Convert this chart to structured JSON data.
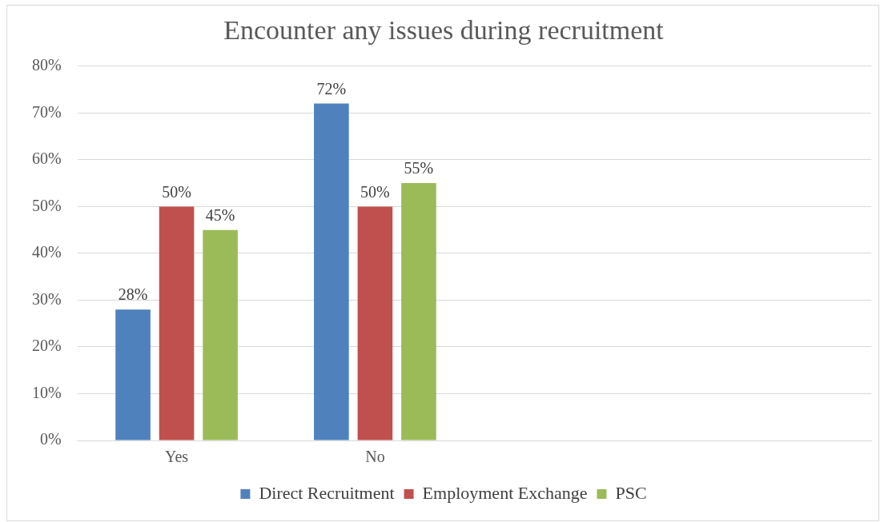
{
  "chart_data": {
    "type": "bar",
    "title": "Encounter any issues during recruitment",
    "categories": [
      "Yes",
      "No",
      null,
      null
    ],
    "series": [
      {
        "name": "Direct Recruitment",
        "color": "#4f81bd",
        "values": [
          28,
          72,
          null,
          null
        ],
        "value_labels": [
          "28%",
          "72%",
          null,
          null
        ]
      },
      {
        "name": "Employment Exchange",
        "color": "#c0504d",
        "values": [
          50,
          50,
          null,
          null
        ],
        "value_labels": [
          "50%",
          "50%",
          null,
          null
        ]
      },
      {
        "name": "PSC",
        "color": "#9bbb59",
        "values": [
          45,
          55,
          null,
          null
        ],
        "value_labels": [
          "45%",
          "55%",
          null,
          null
        ]
      }
    ],
    "ylim": [
      0,
      80
    ],
    "yticks": [
      {
        "value": 0,
        "label": "0%"
      },
      {
        "value": 10,
        "label": "10%"
      },
      {
        "value": 20,
        "label": "20%"
      },
      {
        "value": 30,
        "label": "30%"
      },
      {
        "value": 40,
        "label": "40%"
      },
      {
        "value": 50,
        "label": "50%"
      },
      {
        "value": 60,
        "label": "60%"
      },
      {
        "value": 70,
        "label": "70%"
      },
      {
        "value": 80,
        "label": "80%"
      }
    ],
    "grid": "y",
    "legend": "bottom"
  }
}
